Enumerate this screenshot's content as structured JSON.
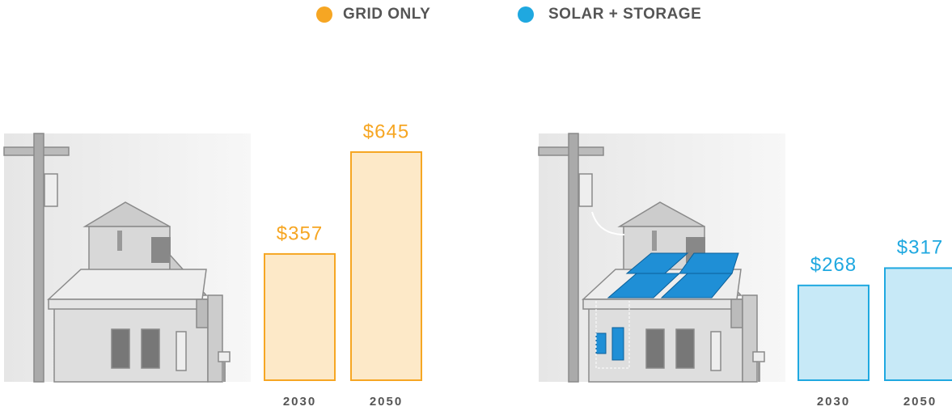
{
  "chart_data": [
    {
      "type": "bar",
      "categories": [
        "2030",
        "2050"
      ],
      "series": [
        {
          "name": "GRID ONLY",
          "color": "#f6a623",
          "values": [
            357,
            645
          ],
          "value_labels": [
            "$357",
            "$645"
          ]
        }
      ]
    },
    {
      "type": "bar",
      "categories": [
        "2030",
        "2050"
      ],
      "series": [
        {
          "name": "SOLAR + STORAGE",
          "color": "#1fa8e0",
          "values": [
            268,
            317
          ],
          "value_labels": [
            "$268",
            "$317"
          ]
        }
      ]
    }
  ]
}
